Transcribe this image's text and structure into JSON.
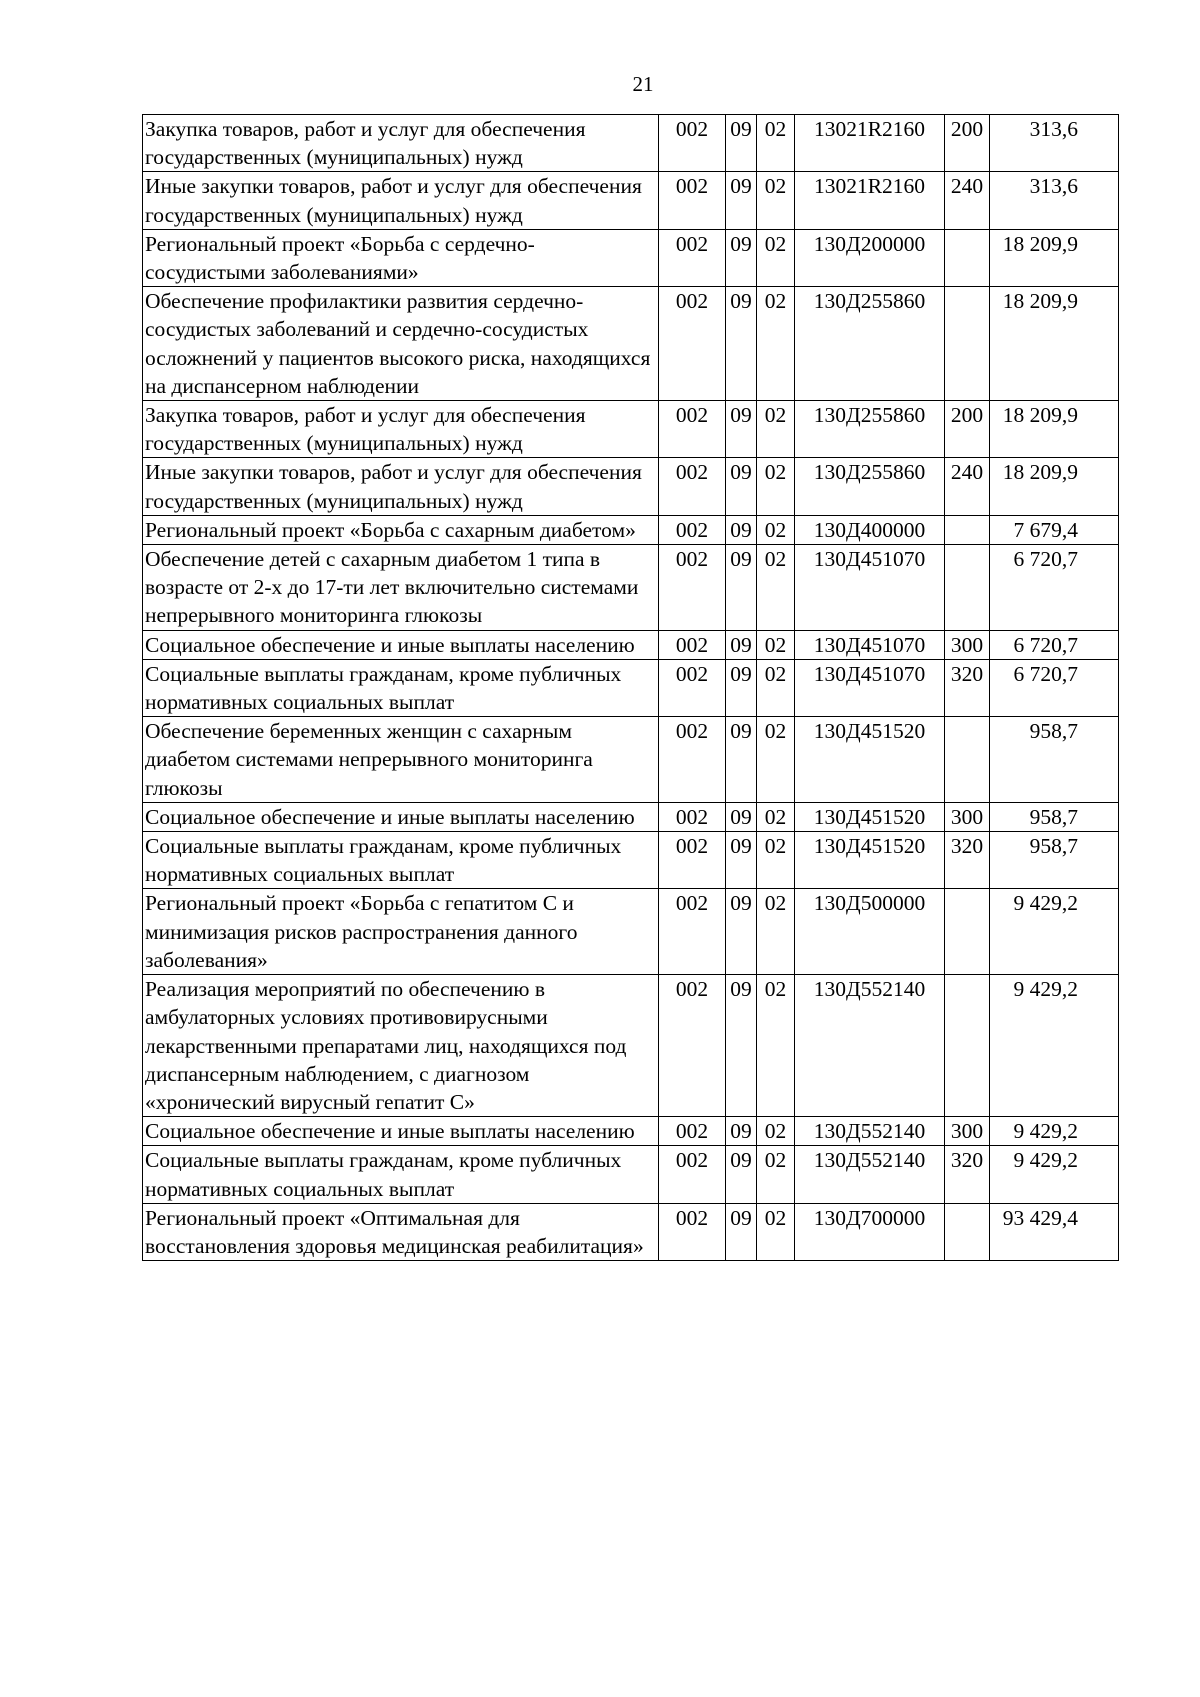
{
  "page_number": "21",
  "rows": [
    {
      "name": "Закупка товаров, работ и услуг для обеспечения государственных (муниципальных) нужд",
      "grbs": "002",
      "rz": "09",
      "pr": "02",
      "csr": "13021R2160",
      "vr": "200",
      "sum": "313,6"
    },
    {
      "name": "Иные закупки товаров, работ и услуг для обеспечения государственных (муниципальных) нужд",
      "grbs": "002",
      "rz": "09",
      "pr": "02",
      "csr": "13021R2160",
      "vr": "240",
      "sum": "313,6"
    },
    {
      "name": "Региональный проект «Борьба с сердечно-сосудистыми заболеваниями»",
      "grbs": "002",
      "rz": "09",
      "pr": "02",
      "csr": "130Д200000",
      "vr": "",
      "sum": "18 209,9"
    },
    {
      "name": "Обеспечение профилактики развития сердечно-сосудистых заболеваний и сердечно-сосудистых осложнений у пациентов высокого риска, находящихся на диспансерном наблюдении",
      "grbs": "002",
      "rz": "09",
      "pr": "02",
      "csr": "130Д255860",
      "vr": "",
      "sum": "18 209,9"
    },
    {
      "name": "Закупка товаров, работ и услуг для обеспечения государственных (муниципальных) нужд",
      "grbs": "002",
      "rz": "09",
      "pr": "02",
      "csr": "130Д255860",
      "vr": "200",
      "sum": "18 209,9"
    },
    {
      "name": "Иные закупки товаров, работ и услуг для обеспечения государственных (муниципальных) нужд",
      "grbs": "002",
      "rz": "09",
      "pr": "02",
      "csr": "130Д255860",
      "vr": "240",
      "sum": "18 209,9"
    },
    {
      "name": "Региональный проект «Борьба с сахарным диабетом»",
      "grbs": "002",
      "rz": "09",
      "pr": "02",
      "csr": "130Д400000",
      "vr": "",
      "sum": "7 679,4"
    },
    {
      "name": "Обеспечение детей с сахарным диабетом 1 типа в возрасте от 2-х до 17-ти лет включительно системами непрерывного мониторинга глюкозы",
      "grbs": "002",
      "rz": "09",
      "pr": "02",
      "csr": "130Д451070",
      "vr": "",
      "sum": "6 720,7"
    },
    {
      "name": "Социальное обеспечение и иные выплаты населению",
      "grbs": "002",
      "rz": "09",
      "pr": "02",
      "csr": "130Д451070",
      "vr": "300",
      "sum": "6 720,7"
    },
    {
      "name": "Социальные выплаты гражданам, кроме публичных нормативных социальных выплат",
      "grbs": "002",
      "rz": "09",
      "pr": "02",
      "csr": "130Д451070",
      "vr": "320",
      "sum": "6 720,7"
    },
    {
      "name": "Обеспечение беременных женщин с сахарным диабетом системами непрерывного мониторинга глюкозы",
      "grbs": "002",
      "rz": "09",
      "pr": "02",
      "csr": "130Д451520",
      "vr": "",
      "sum": "958,7"
    },
    {
      "name": "Социальное обеспечение и иные выплаты населению",
      "grbs": "002",
      "rz": "09",
      "pr": "02",
      "csr": "130Д451520",
      "vr": "300",
      "sum": "958,7"
    },
    {
      "name": "Социальные выплаты гражданам, кроме публичных нормативных социальных выплат",
      "grbs": "002",
      "rz": "09",
      "pr": "02",
      "csr": "130Д451520",
      "vr": "320",
      "sum": "958,7"
    },
    {
      "name": "Региональный проект «Борьба с гепатитом С и минимизация рисков распространения данного заболевания»",
      "grbs": "002",
      "rz": "09",
      "pr": "02",
      "csr": "130Д500000",
      "vr": "",
      "sum": "9 429,2"
    },
    {
      "name": "Реализация мероприятий по обеспечению в амбулаторных условиях противовирусными лекарственными препаратами лиц, находящихся под диспансерным наблюдением, с диагнозом «хронический вирусный гепатит С»",
      "grbs": "002",
      "rz": "09",
      "pr": "02",
      "csr": "130Д552140",
      "vr": "",
      "sum": "9 429,2"
    },
    {
      "name": "Социальное обеспечение и иные выплаты населению",
      "grbs": "002",
      "rz": "09",
      "pr": "02",
      "csr": "130Д552140",
      "vr": "300",
      "sum": "9 429,2"
    },
    {
      "name": "Социальные выплаты гражданам, кроме публичных нормативных социальных выплат",
      "grbs": "002",
      "rz": "09",
      "pr": "02",
      "csr": "130Д552140",
      "vr": "320",
      "sum": "9 429,2"
    },
    {
      "name": "Региональный проект «Оптимальная для восстановления здоровья медицинская реабилитация»",
      "grbs": "002",
      "rz": "09",
      "pr": "02",
      "csr": "130Д700000",
      "vr": "",
      "sum": "93 429,4"
    }
  ]
}
